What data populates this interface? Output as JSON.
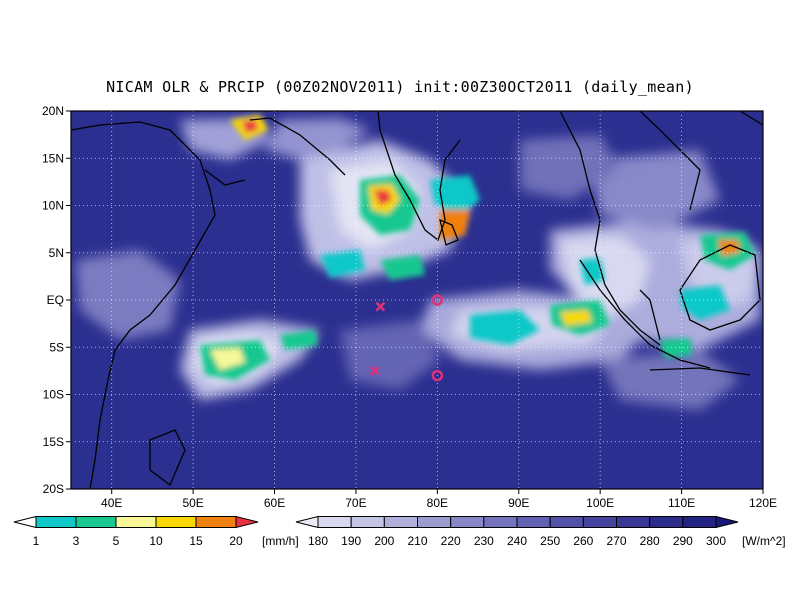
{
  "title": "NICAM OLR & PRCIP (00Z02NOV2011) init:00Z30OCT2011 (daily_mean)",
  "map": {
    "lon_range": [
      35,
      120
    ],
    "lat_range": [
      -20,
      20
    ],
    "lat_ticks": [
      "20N",
      "15N",
      "10N",
      "5N",
      "EQ",
      "5S",
      "10S",
      "15S",
      "20S"
    ],
    "lon_ticks": [
      "40E",
      "50E",
      "60E",
      "70E",
      "80E",
      "90E",
      "100E",
      "110E",
      "120E"
    ],
    "grid": true,
    "background_color": "#2b2f8f",
    "markers": [
      {
        "symbol": "x",
        "lon": 73.0,
        "lat": -0.7,
        "color": "#e0307a"
      },
      {
        "symbol": "x",
        "lon": 72.3,
        "lat": -7.5,
        "color": "#e0307a"
      },
      {
        "symbol": "o",
        "lon": 80.0,
        "lat": 0.0,
        "color": "#e0307a"
      },
      {
        "symbol": "o",
        "lon": 80.0,
        "lat": -8.0,
        "color": "#e0307a"
      }
    ]
  },
  "precip_colorbar": {
    "labels": [
      "1",
      "3",
      "5",
      "10",
      "15",
      "20"
    ],
    "unit": "[mm/h]",
    "colors": [
      "#10c8c8",
      "#18c890",
      "#f8f898",
      "#f8d800",
      "#f08010",
      "#e83040"
    ]
  },
  "olr_colorbar": {
    "labels": [
      "180",
      "190",
      "200",
      "210",
      "220",
      "230",
      "240",
      "250",
      "260",
      "270",
      "280",
      "290",
      "300"
    ],
    "unit": "[W/m^2]",
    "colors": [
      "#ececf6",
      "#d8d8ee",
      "#c4c4e4",
      "#b0b0da",
      "#9c9cd0",
      "#8888c6",
      "#7474bc",
      "#6262b2",
      "#5252a8",
      "#44449e",
      "#383894",
      "#2c2c8a",
      "#222280",
      "#18187a"
    ]
  }
}
